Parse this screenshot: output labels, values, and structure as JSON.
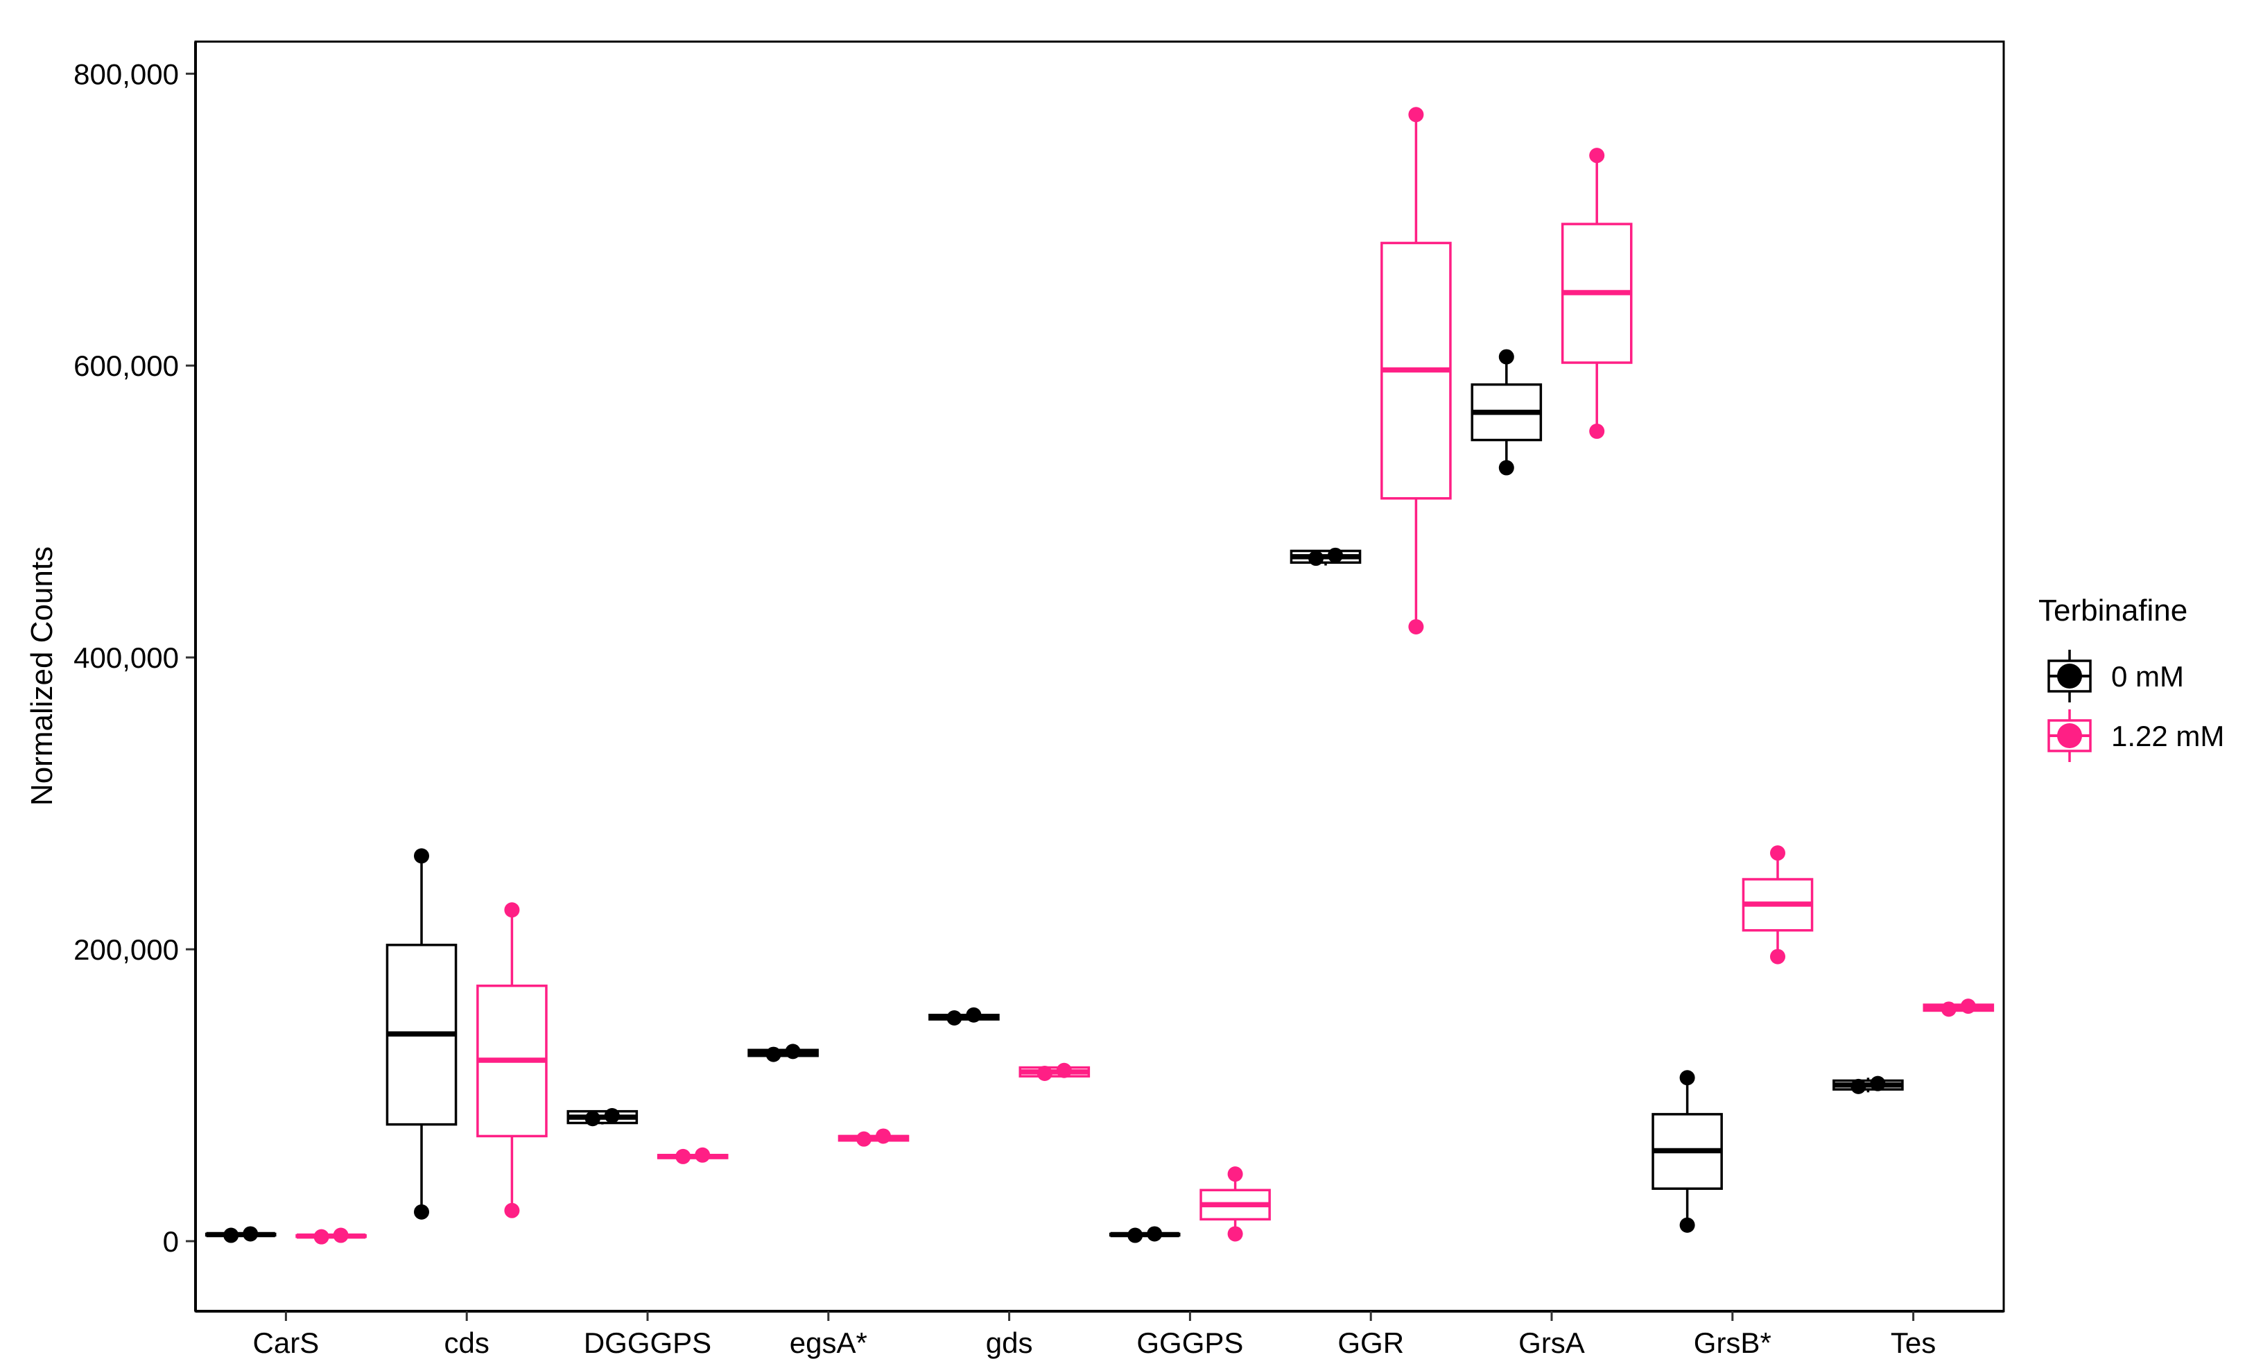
{
  "chart_data": {
    "type": "box",
    "ylabel": "Normalized Counts",
    "xlabel": "",
    "ylim": [
      -48000,
      822000
    ],
    "y_ticks": [
      0,
      200000,
      400000,
      600000,
      800000
    ],
    "y_tick_labels": [
      "0",
      "200,000",
      "400,000",
      "600,000",
      "800,000"
    ],
    "categories": [
      "CarS",
      "cds",
      "DGGGPS",
      "egsA*",
      "gds",
      "GGGPS",
      "GGR",
      "GrsA",
      "GrsB*",
      "Tes"
    ],
    "legend": {
      "title": "Terbinafine",
      "position": "right"
    },
    "series": [
      {
        "name": "0 mM",
        "color": "#000000",
        "boxes": [
          {
            "q1": 4000,
            "median": 4500,
            "q3": 5000,
            "whisker_low": 4000,
            "whisker_high": 5000,
            "points": [
              4000,
              5000
            ]
          },
          {
            "q1": 80000,
            "median": 142000,
            "q3": 203000,
            "whisker_low": 20000,
            "whisker_high": 264000,
            "points": [
              20000,
              264000
            ]
          },
          {
            "q1": 81000,
            "median": 85000,
            "q3": 89000,
            "whisker_low": 80000,
            "whisker_high": 89000,
            "points": [
              84000,
              86000
            ]
          },
          {
            "q1": 127000,
            "median": 129000,
            "q3": 131000,
            "whisker_low": 127000,
            "whisker_high": 131000,
            "points": [
              128000,
              130000
            ]
          },
          {
            "q1": 152000,
            "median": 154000,
            "q3": 155000,
            "whisker_low": 152000,
            "whisker_high": 155000,
            "points": [
              153000,
              155000
            ]
          },
          {
            "q1": 4000,
            "median": 4500,
            "q3": 5000,
            "whisker_low": 4000,
            "whisker_high": 5000,
            "points": [
              4000,
              5000
            ]
          },
          {
            "q1": 465000,
            "median": 469000,
            "q3": 473000,
            "whisker_low": 463000,
            "whisker_high": 473000,
            "points": [
              468000,
              470000
            ]
          },
          {
            "q1": 549000,
            "median": 568000,
            "q3": 587000,
            "whisker_low": 530000,
            "whisker_high": 606000,
            "points": [
              530000,
              606000
            ]
          },
          {
            "q1": 36000,
            "median": 62000,
            "q3": 87000,
            "whisker_low": 11000,
            "whisker_high": 112000,
            "points": [
              11000,
              112000
            ]
          },
          {
            "q1": 104000,
            "median": 107000,
            "q3": 110000,
            "whisker_low": 102000,
            "whisker_high": 112000,
            "points": [
              106000,
              108000
            ]
          }
        ]
      },
      {
        "name": "1.22 mM",
        "color": "#FF1F85",
        "boxes": [
          {
            "q1": 3000,
            "median": 3500,
            "q3": 4000,
            "whisker_low": 3000,
            "whisker_high": 4000,
            "points": [
              3000,
              4000
            ]
          },
          {
            "q1": 72000,
            "median": 124000,
            "q3": 175000,
            "whisker_low": 21000,
            "whisker_high": 227000,
            "points": [
              21000,
              227000
            ]
          },
          {
            "q1": 57000,
            "median": 58000,
            "q3": 59000,
            "whisker_low": 57000,
            "whisker_high": 59000,
            "points": [
              58000,
              59000
            ]
          },
          {
            "q1": 69000,
            "median": 71000,
            "q3": 72000,
            "whisker_low": 69000,
            "whisker_high": 72000,
            "points": [
              70000,
              72000
            ]
          },
          {
            "q1": 113000,
            "median": 116000,
            "q3": 119000,
            "whisker_low": 113000,
            "whisker_high": 119000,
            "points": [
              115000,
              117000
            ]
          },
          {
            "q1": 15000,
            "median": 25000,
            "q3": 35000,
            "whisker_low": 5000,
            "whisker_high": 46000,
            "points": [
              5000,
              46000
            ]
          },
          {
            "q1": 509000,
            "median": 597000,
            "q3": 684000,
            "whisker_low": 421000,
            "whisker_high": 772000,
            "points": [
              421000,
              772000
            ]
          },
          {
            "q1": 602000,
            "median": 650000,
            "q3": 697000,
            "whisker_low": 555000,
            "whisker_high": 744000,
            "points": [
              555000,
              744000
            ]
          },
          {
            "q1": 213000,
            "median": 231000,
            "q3": 248000,
            "whisker_low": 195000,
            "whisker_high": 266000,
            "points": [
              195000,
              266000
            ]
          },
          {
            "q1": 158000,
            "median": 160000,
            "q3": 162000,
            "whisker_low": 158000,
            "whisker_high": 162000,
            "points": [
              159000,
              161000
            ]
          }
        ]
      }
    ]
  }
}
